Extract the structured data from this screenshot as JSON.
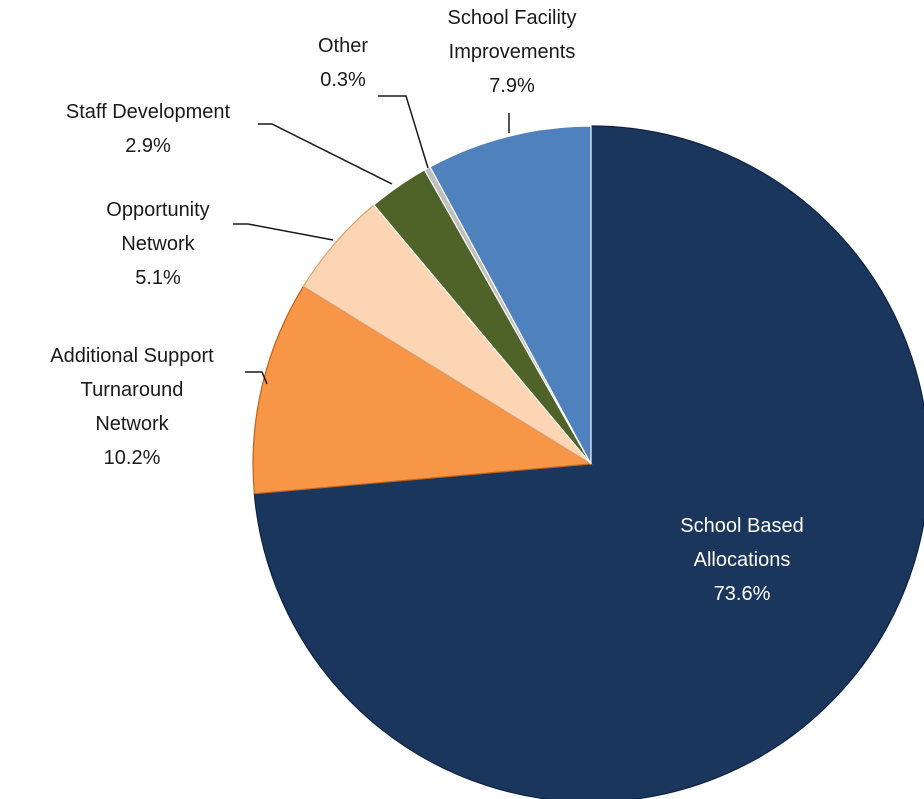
{
  "chart_data": {
    "type": "pie",
    "start_angle_deg": 0,
    "direction": "clockwise",
    "slices": [
      {
        "id": "sba",
        "lines": [
          "School Based",
          "Allocations"
        ],
        "pct_label": "73.6%",
        "value": 73.6,
        "color": "#1a365d",
        "label_inside": true
      },
      {
        "id": "ast",
        "lines": [
          "Additional  Support",
          "Turnaround",
          "Network"
        ],
        "pct_label": "10.2%",
        "value": 10.2,
        "color": "#f79646"
      },
      {
        "id": "opp",
        "lines": [
          "Opportunity",
          "Network"
        ],
        "pct_label": "5.1%",
        "value": 5.1,
        "color": "#fcd5b5"
      },
      {
        "id": "staff",
        "lines": [
          "Staff Development"
        ],
        "pct_label": "2.9%",
        "value": 2.9,
        "color": "#4f6228"
      },
      {
        "id": "other",
        "lines": [
          "Other"
        ],
        "pct_label": "0.3%",
        "value": 0.3,
        "color": "#bfbfbf"
      },
      {
        "id": "sfi",
        "lines": [
          "School Facility",
          "Improvements"
        ],
        "pct_label": "7.9%",
        "value": 7.9,
        "color": "#4f81bd"
      }
    ]
  }
}
